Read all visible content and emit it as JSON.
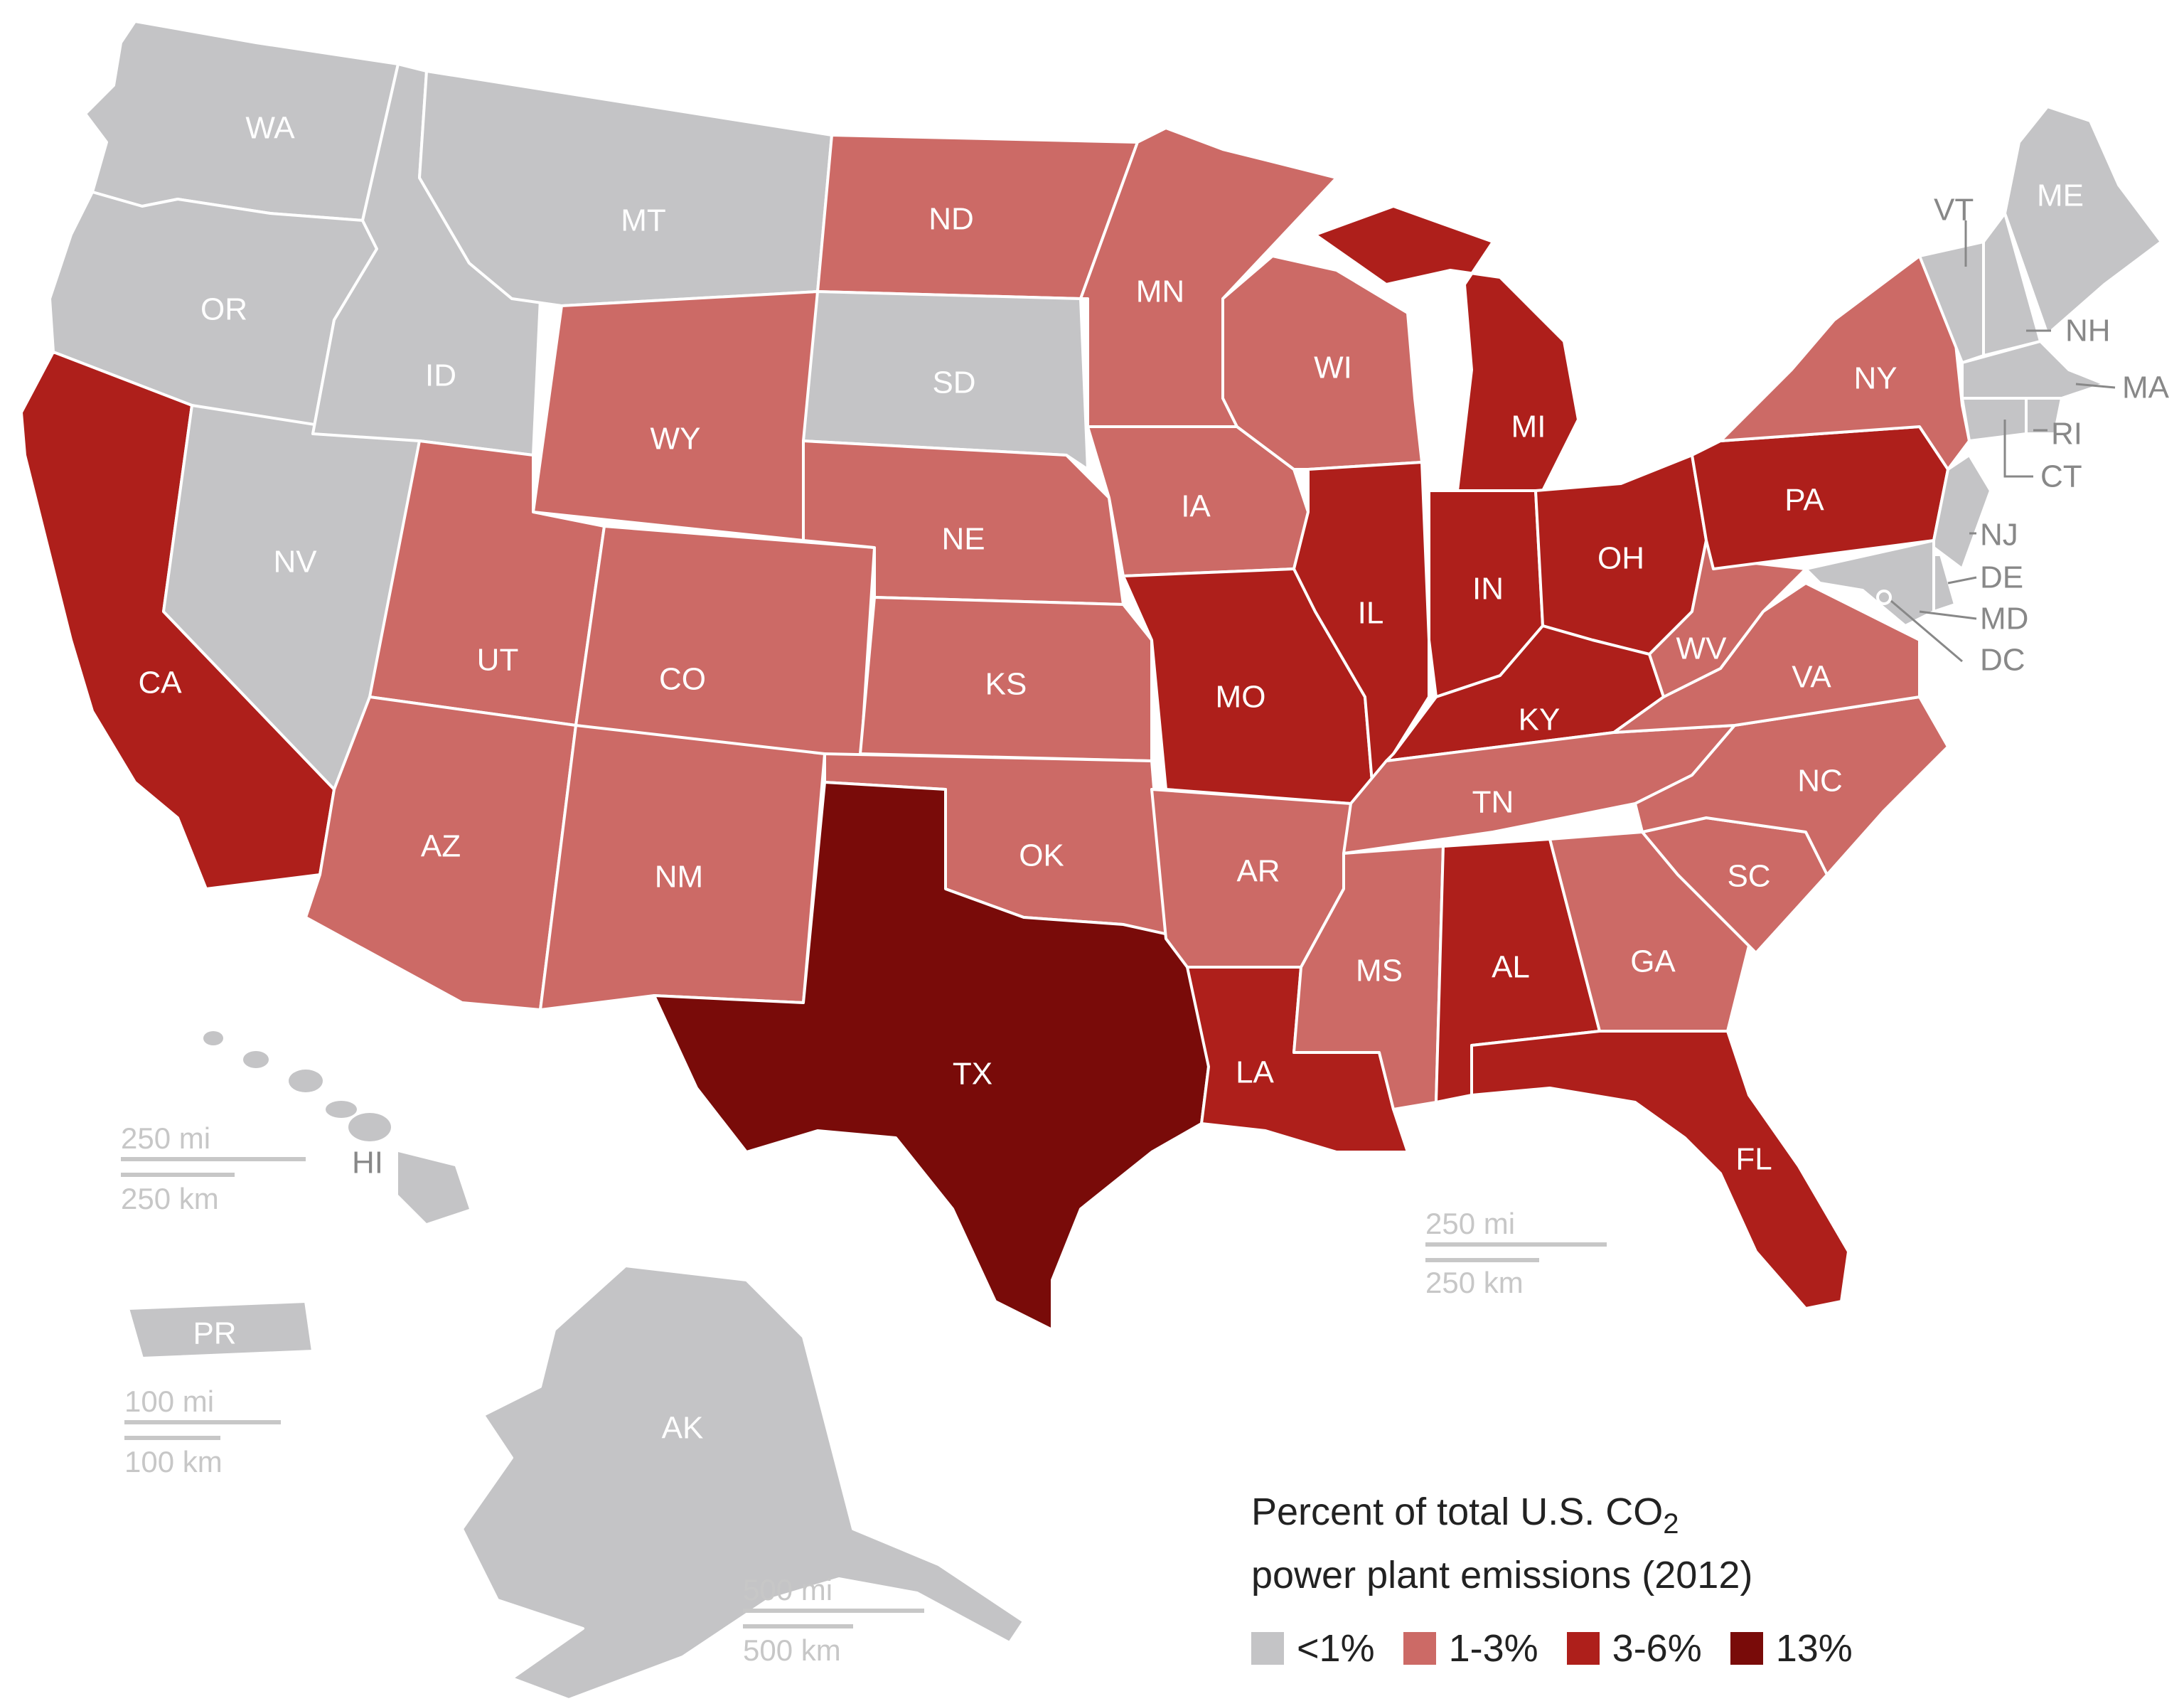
{
  "colors": {
    "lt1": "#c4c4c6",
    "p1to3": "#cc6a66",
    "p3to6": "#ae1f1b",
    "p13": "#790b09",
    "border": "#ffffff",
    "scale": "#c7c7c7",
    "leader": "#888888"
  },
  "states": [
    {
      "abbr": "WA",
      "bin": "lt1"
    },
    {
      "abbr": "OR",
      "bin": "lt1"
    },
    {
      "abbr": "CA",
      "bin": "p3to6"
    },
    {
      "abbr": "NV",
      "bin": "lt1"
    },
    {
      "abbr": "ID",
      "bin": "lt1"
    },
    {
      "abbr": "MT",
      "bin": "lt1"
    },
    {
      "abbr": "WY",
      "bin": "p1to3"
    },
    {
      "abbr": "UT",
      "bin": "p1to3"
    },
    {
      "abbr": "AZ",
      "bin": "p1to3"
    },
    {
      "abbr": "CO",
      "bin": "p1to3"
    },
    {
      "abbr": "NM",
      "bin": "p1to3"
    },
    {
      "abbr": "ND",
      "bin": "p1to3"
    },
    {
      "abbr": "SD",
      "bin": "lt1"
    },
    {
      "abbr": "NE",
      "bin": "p1to3"
    },
    {
      "abbr": "KS",
      "bin": "p1to3"
    },
    {
      "abbr": "OK",
      "bin": "p1to3"
    },
    {
      "abbr": "TX",
      "bin": "p13"
    },
    {
      "abbr": "MN",
      "bin": "p1to3"
    },
    {
      "abbr": "IA",
      "bin": "p1to3"
    },
    {
      "abbr": "MO",
      "bin": "p3to6"
    },
    {
      "abbr": "AR",
      "bin": "p1to3"
    },
    {
      "abbr": "LA",
      "bin": "p3to6"
    },
    {
      "abbr": "WI",
      "bin": "p1to3"
    },
    {
      "abbr": "IL",
      "bin": "p3to6"
    },
    {
      "abbr": "MI",
      "bin": "p3to6"
    },
    {
      "abbr": "IN",
      "bin": "p3to6"
    },
    {
      "abbr": "OH",
      "bin": "p3to6"
    },
    {
      "abbr": "KY",
      "bin": "p3to6"
    },
    {
      "abbr": "TN",
      "bin": "p1to3"
    },
    {
      "abbr": "MS",
      "bin": "p1to3"
    },
    {
      "abbr": "AL",
      "bin": "p3to6"
    },
    {
      "abbr": "GA",
      "bin": "p1to3"
    },
    {
      "abbr": "FL",
      "bin": "p3to6"
    },
    {
      "abbr": "SC",
      "bin": "p1to3"
    },
    {
      "abbr": "NC",
      "bin": "p1to3"
    },
    {
      "abbr": "VA",
      "bin": "p1to3"
    },
    {
      "abbr": "WV",
      "bin": "p1to3"
    },
    {
      "abbr": "PA",
      "bin": "p3to6"
    },
    {
      "abbr": "NY",
      "bin": "p1to3"
    },
    {
      "abbr": "VT",
      "bin": "lt1"
    },
    {
      "abbr": "NH",
      "bin": "lt1"
    },
    {
      "abbr": "ME",
      "bin": "lt1"
    },
    {
      "abbr": "MA",
      "bin": "lt1"
    },
    {
      "abbr": "RI",
      "bin": "lt1"
    },
    {
      "abbr": "CT",
      "bin": "lt1"
    },
    {
      "abbr": "NJ",
      "bin": "lt1"
    },
    {
      "abbr": "DE",
      "bin": "lt1"
    },
    {
      "abbr": "MD",
      "bin": "lt1"
    },
    {
      "abbr": "DC",
      "bin": "lt1"
    },
    {
      "abbr": "HI",
      "bin": "lt1"
    },
    {
      "abbr": "PR",
      "bin": "lt1"
    },
    {
      "abbr": "AK",
      "bin": "lt1"
    }
  ],
  "scale_bars": {
    "hawaii": {
      "mi": "250 mi",
      "km": "250 km"
    },
    "mainland": {
      "mi": "250 mi",
      "km": "250 km"
    },
    "puerto_rico": {
      "mi": "100 mi",
      "km": "100 km"
    },
    "alaska": {
      "mi": "500 mi",
      "km": "500 km"
    }
  },
  "legend": {
    "title_line1": "Percent of total U.S. CO",
    "title_sub": "2",
    "title_line2": "power plant emissions (2012)",
    "items": [
      {
        "label": "<1%",
        "bin": "lt1"
      },
      {
        "label": "1-3%",
        "bin": "p1to3"
      },
      {
        "label": "3-6%",
        "bin": "p3to6"
      },
      {
        "label": "13%",
        "bin": "p13"
      }
    ]
  }
}
